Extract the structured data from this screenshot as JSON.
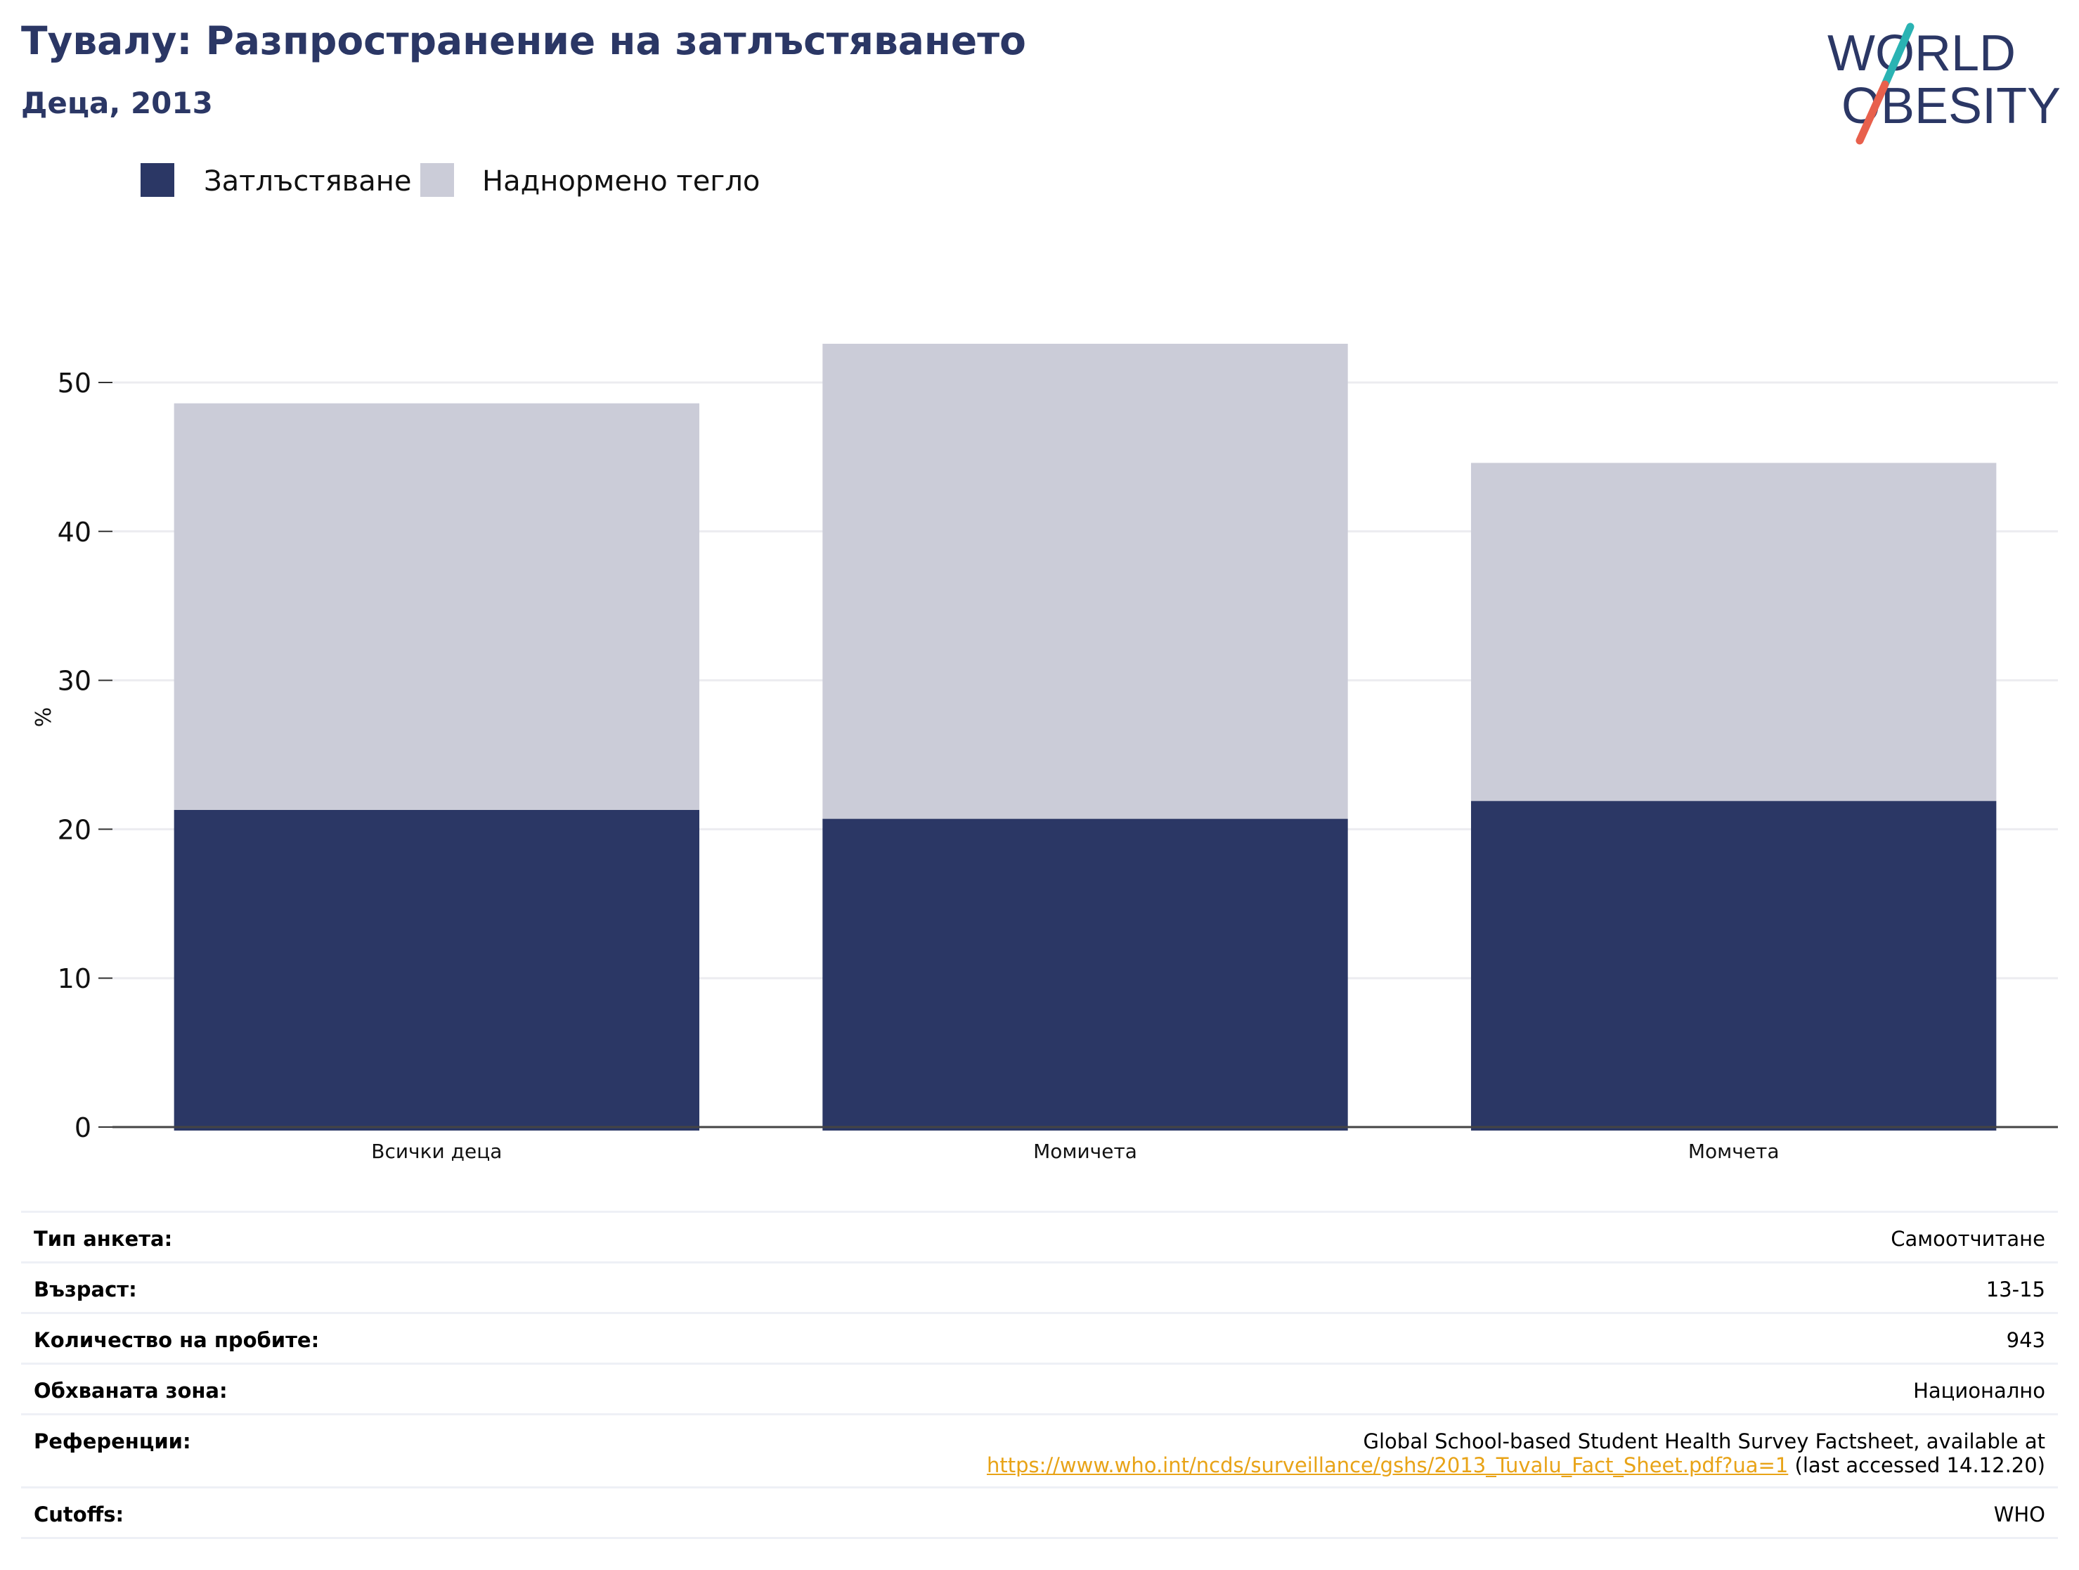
{
  "header": {
    "title": "Тувалу: Разпространение на затлъстяването",
    "subtitle": "Деца, 2013"
  },
  "logo": {
    "line1": "WORLD",
    "line2": "OBESITY",
    "text_color": "#2b3765",
    "slash_top_color": "#2ab3b3",
    "slash_bottom_color": "#e8604c"
  },
  "legend": {
    "items": [
      {
        "label": "Затлъстяване",
        "color": "#2b3765"
      },
      {
        "label": "Наднормено тегло",
        "color": "#cbccd8"
      }
    ]
  },
  "chart_data": {
    "type": "bar",
    "stacked": true,
    "categories": [
      "Всички деца",
      "Момичета",
      "Момчета"
    ],
    "series": [
      {
        "name": "Затлъстяване",
        "color": "#2b3765",
        "values": [
          21.3,
          20.7,
          21.9
        ]
      },
      {
        "name": "Наднормено тегло",
        "color": "#cbccd8",
        "values": [
          27.3,
          31.9,
          22.7
        ]
      }
    ],
    "ylabel": "%",
    "xlabel": "",
    "ylim": [
      0,
      55
    ],
    "yticks": [
      "0",
      "10",
      "20",
      "30",
      "40",
      "50"
    ],
    "grid": true,
    "legend_position": "top-left"
  },
  "info": {
    "rows": [
      {
        "label": "Тип анкета:",
        "value": "Самоотчитане"
      },
      {
        "label": "Възраст:",
        "value": "13-15"
      },
      {
        "label": "Количество на пробите:",
        "value": "943"
      },
      {
        "label": "Обхваната зона:",
        "value": "Национално"
      },
      {
        "label": "Референции:",
        "value_line1": "Global School-based Student Health Survey Factsheet, available at",
        "link": "https://www.who.int/ncds/surveillance/gshs/2013_Tuvalu_Fact_Sheet.pdf?ua=1",
        "value_suffix": " (last accessed 14.12.20)"
      },
      {
        "label": "Cutoffs:",
        "value": "WHO"
      }
    ]
  }
}
